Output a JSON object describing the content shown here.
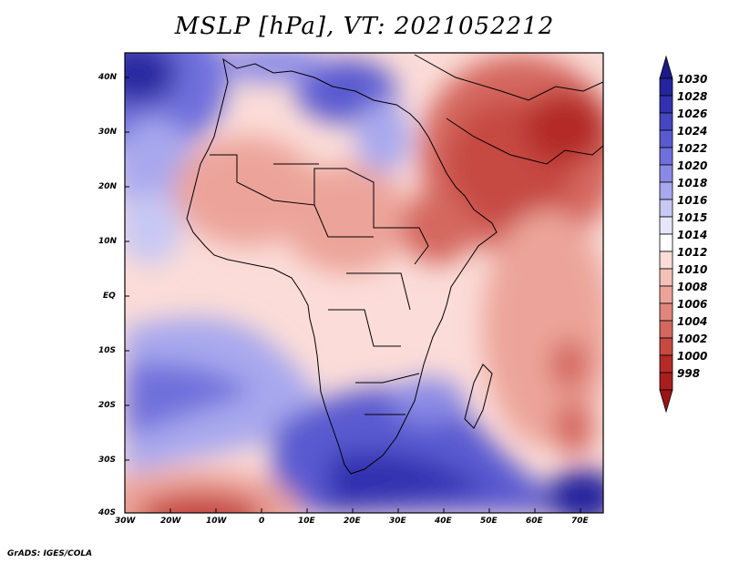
{
  "title": "MSLP [hPa], VT: 2021052212",
  "footer": "GrADS: IGES/COLA",
  "lat_ticks": [
    "40N",
    "30N",
    "20N",
    "10N",
    "EQ",
    "10S",
    "20S",
    "30S",
    "40S"
  ],
  "lon_ticks": [
    "30W",
    "20W",
    "10W",
    "0",
    "10E",
    "20E",
    "30E",
    "40E",
    "50E",
    "60E",
    "70E"
  ],
  "colorbar": {
    "levels": [
      "1030",
      "1028",
      "1026",
      "1024",
      "1022",
      "1020",
      "1018",
      "1016",
      "1015",
      "1014",
      "1012",
      "1010",
      "1008",
      "1006",
      "1004",
      "1002",
      "1000",
      "998"
    ],
    "colors": [
      "#1a1a8a",
      "#24249c",
      "#3232b0",
      "#4646c2",
      "#5a5ad0",
      "#7070dc",
      "#8a8ae6",
      "#a8a8ee",
      "#c8c8f4",
      "#e6e6fa",
      "#ffffff",
      "#fbdcd8",
      "#f4c0b8",
      "#eca49a",
      "#e0867c",
      "#d4685e",
      "#c64a42",
      "#b42a28",
      "#9c1414"
    ]
  }
}
